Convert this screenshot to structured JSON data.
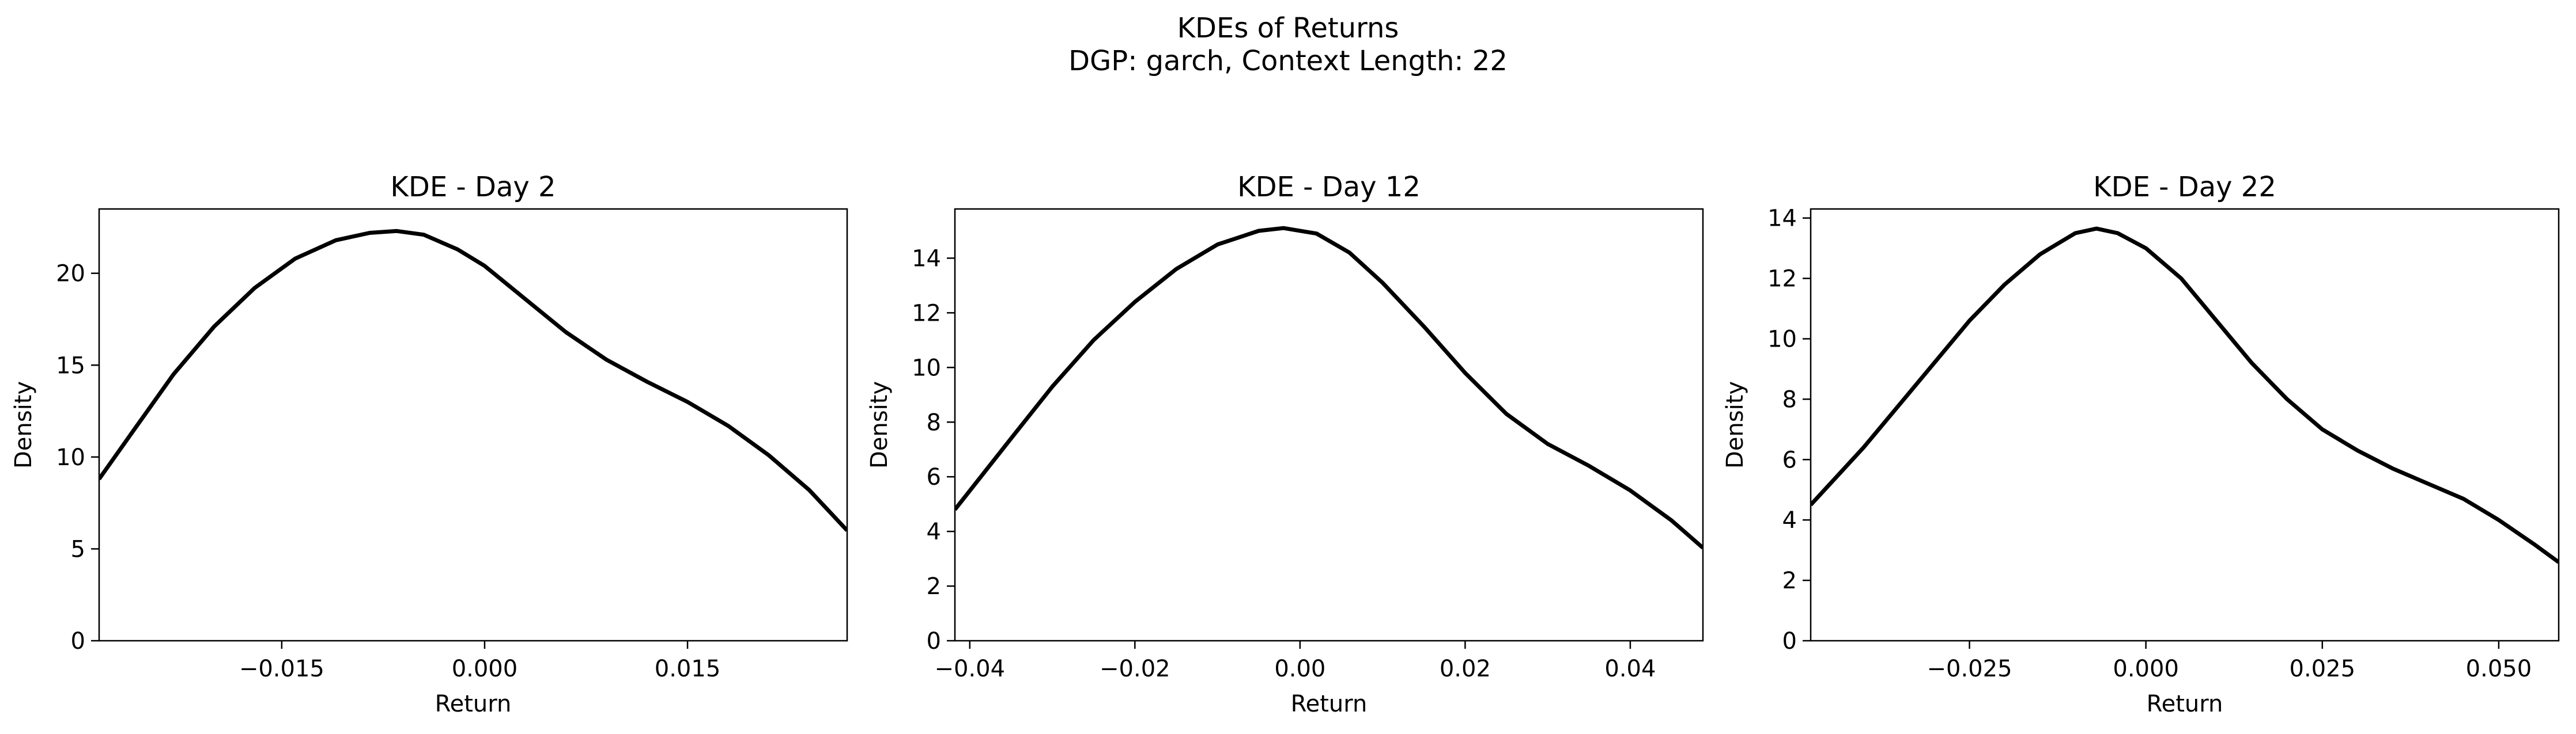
{
  "title": "KDEs of Returns",
  "subtitle": "DGP: garch, Context Length: 22",
  "colors": {
    "line": "#000000",
    "axes": "#000000",
    "background": "#ffffff"
  },
  "chart_data": [
    {
      "type": "line",
      "title": "KDE - Day 2",
      "xlabel": "Return",
      "ylabel": "Density",
      "xlim": [
        -0.0285,
        0.0268
      ],
      "ylim": [
        0,
        23.5
      ],
      "xticks": [
        -0.015,
        0.0,
        0.015
      ],
      "xtick_labels": [
        "−0.015",
        "0.000",
        "0.015"
      ],
      "yticks": [
        0,
        5,
        10,
        15,
        20
      ],
      "ytick_labels": [
        "0",
        "5",
        "10",
        "15",
        "20"
      ],
      "grid": false,
      "series": [
        {
          "x": [
            -0.0285,
            -0.026,
            -0.023,
            -0.02,
            -0.017,
            -0.014,
            -0.011,
            -0.0085,
            -0.0065,
            -0.0045,
            -0.002,
            0.0,
            0.003,
            0.006,
            0.009,
            0.012,
            0.015,
            0.018,
            0.021,
            0.024,
            0.0268
          ],
          "y": [
            8.8,
            11.4,
            14.5,
            17.1,
            19.2,
            20.8,
            21.8,
            22.2,
            22.3,
            22.1,
            21.3,
            20.4,
            18.6,
            16.8,
            15.3,
            14.1,
            13.0,
            11.7,
            10.1,
            8.2,
            6.0
          ]
        }
      ]
    },
    {
      "type": "line",
      "title": "KDE - Day 12",
      "xlabel": "Return",
      "ylabel": "Density",
      "xlim": [
        -0.0418,
        0.0488
      ],
      "ylim": [
        0,
        15.8
      ],
      "xticks": [
        -0.04,
        -0.02,
        0.0,
        0.02,
        0.04
      ],
      "xtick_labels": [
        "−0.04",
        "−0.02",
        "0.00",
        "0.02",
        "0.04"
      ],
      "yticks": [
        0,
        2,
        4,
        6,
        8,
        10,
        12,
        14
      ],
      "ytick_labels": [
        "0",
        "2",
        "4",
        "6",
        "8",
        "10",
        "12",
        "14"
      ],
      "grid": false,
      "series": [
        {
          "x": [
            -0.0418,
            -0.035,
            -0.03,
            -0.025,
            -0.02,
            -0.015,
            -0.01,
            -0.005,
            -0.002,
            0.002,
            0.006,
            0.01,
            0.015,
            0.02,
            0.025,
            0.03,
            0.035,
            0.04,
            0.045,
            0.0488
          ],
          "y": [
            4.8,
            7.4,
            9.3,
            11.0,
            12.4,
            13.6,
            14.5,
            15.0,
            15.1,
            14.9,
            14.2,
            13.1,
            11.5,
            9.8,
            8.3,
            7.2,
            6.4,
            5.5,
            4.4,
            3.4
          ]
        }
      ]
    },
    {
      "type": "line",
      "title": "KDE - Day 22",
      "xlabel": "Return",
      "ylabel": "Density",
      "xlim": [
        -0.0475,
        0.0585
      ],
      "ylim": [
        0,
        14.3
      ],
      "xticks": [
        -0.025,
        0.0,
        0.025,
        0.05
      ],
      "xtick_labels": [
        "−0.025",
        "0.000",
        "0.025",
        "0.050"
      ],
      "yticks": [
        0,
        2,
        4,
        6,
        8,
        10,
        12,
        14
      ],
      "ytick_labels": [
        "0",
        "2",
        "4",
        "6",
        "8",
        "10",
        "12",
        "14"
      ],
      "grid": false,
      "series": [
        {
          "x": [
            -0.0475,
            -0.04,
            -0.035,
            -0.03,
            -0.025,
            -0.02,
            -0.015,
            -0.01,
            -0.007,
            -0.004,
            0.0,
            0.005,
            0.01,
            0.015,
            0.02,
            0.025,
            0.03,
            0.035,
            0.04,
            0.045,
            0.05,
            0.055,
            0.0585
          ],
          "y": [
            4.5,
            6.4,
            7.8,
            9.2,
            10.6,
            11.8,
            12.8,
            13.5,
            13.65,
            13.5,
            13.0,
            12.0,
            10.6,
            9.2,
            8.0,
            7.0,
            6.3,
            5.7,
            5.2,
            4.7,
            4.0,
            3.2,
            2.6
          ]
        }
      ]
    }
  ]
}
